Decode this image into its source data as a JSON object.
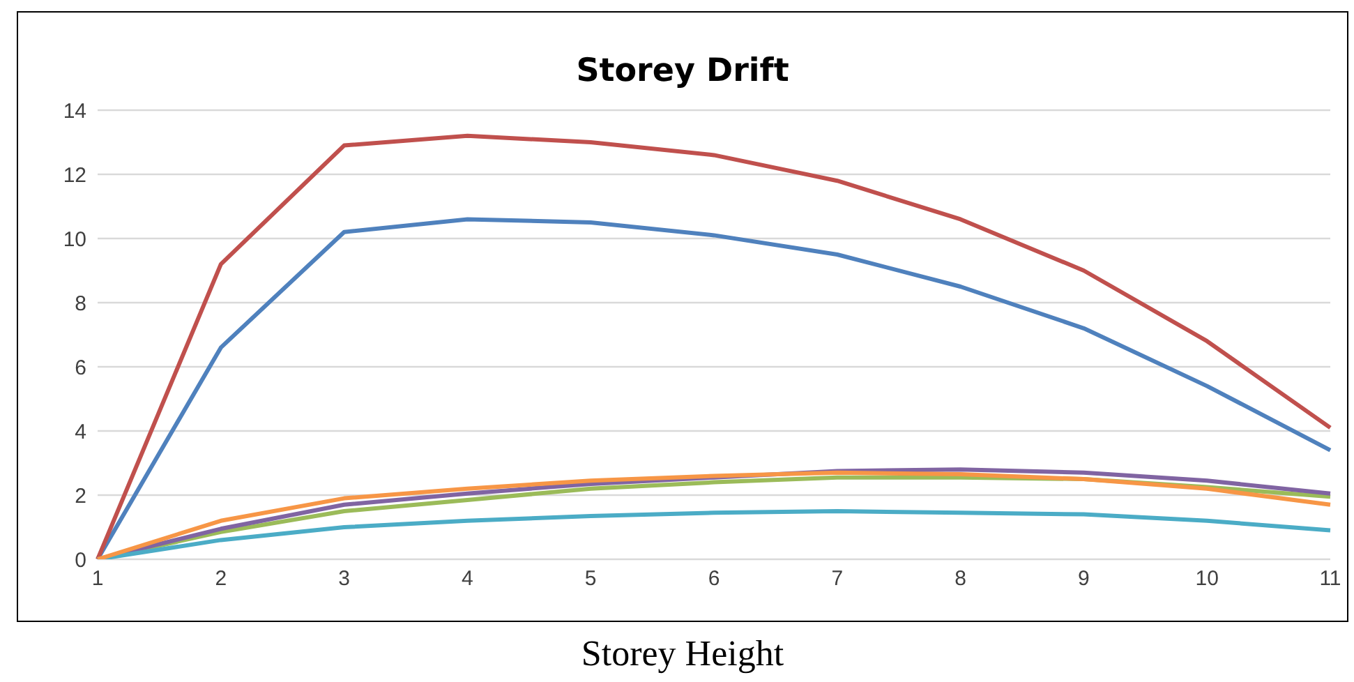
{
  "chart_data": {
    "type": "line",
    "title": "Storey Drift",
    "xlabel": "Storey Height",
    "categories": [
      "1",
      "2",
      "3",
      "4",
      "5",
      "6",
      "7",
      "8",
      "9",
      "10",
      "11"
    ],
    "series": [
      {
        "color": "#4f81bd",
        "values": [
          0,
          6.6,
          10.2,
          10.6,
          10.5,
          10.1,
          9.5,
          8.5,
          7.2,
          5.4,
          3.4
        ]
      },
      {
        "color": "#c0504d",
        "values": [
          0,
          9.2,
          12.9,
          13.2,
          13.0,
          12.6,
          11.8,
          10.6,
          9.0,
          6.8,
          4.1
        ]
      },
      {
        "color": "#9bbb59",
        "values": [
          0,
          0.85,
          1.5,
          1.85,
          2.2,
          2.4,
          2.55,
          2.55,
          2.5,
          2.25,
          1.95
        ]
      },
      {
        "color": "#8064a2",
        "values": [
          0,
          0.95,
          1.7,
          2.05,
          2.35,
          2.55,
          2.75,
          2.8,
          2.7,
          2.45,
          2.05
        ]
      },
      {
        "color": "#4bacc6",
        "values": [
          0,
          0.6,
          1.0,
          1.2,
          1.35,
          1.45,
          1.5,
          1.45,
          1.4,
          1.2,
          0.9
        ]
      },
      {
        "color": "#f79646",
        "values": [
          0,
          1.2,
          1.9,
          2.2,
          2.45,
          2.6,
          2.7,
          2.65,
          2.5,
          2.2,
          1.7
        ]
      }
    ],
    "ylim": [
      0,
      14
    ],
    "yticks": [
      0,
      2,
      4,
      6,
      8,
      10,
      12,
      14
    ],
    "grid": "y",
    "legend": false,
    "marker": "none",
    "line_style": "solid"
  }
}
